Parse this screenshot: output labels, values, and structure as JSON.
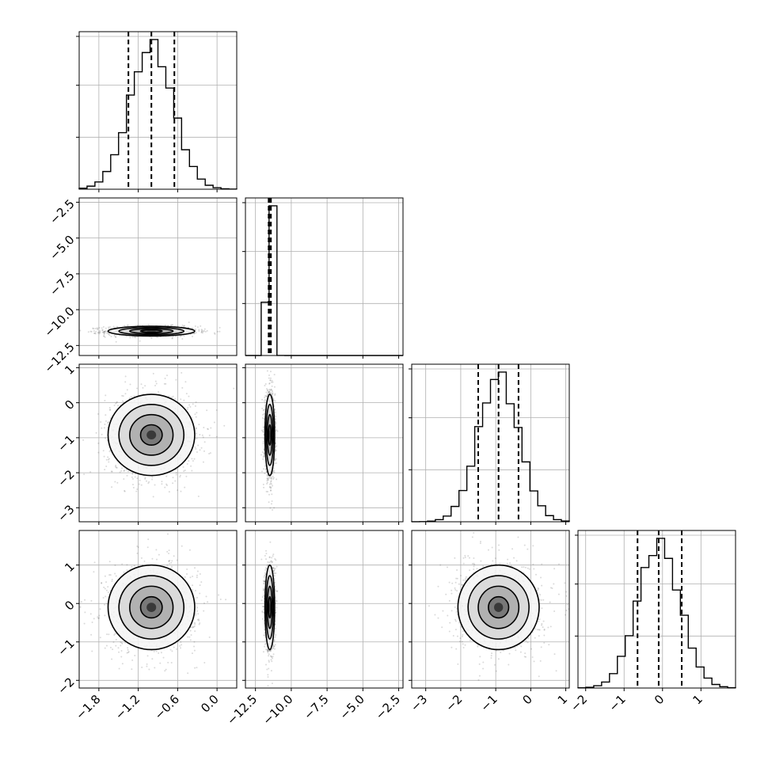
{
  "chart_data": {
    "type": "corner",
    "title": "",
    "grid": true,
    "quantile_line_style": "dashed",
    "parameters": [
      {
        "name": "p0",
        "label": "",
        "range": [
          -2.1,
          0.3
        ],
        "ticks": [
          -1.8,
          -1.2,
          -0.6,
          0.0
        ],
        "tick_labels": [
          "−1.8",
          "−1.2",
          "−0.6",
          "0.0"
        ],
        "mean": -1.0,
        "sd": 0.33,
        "quantiles": [
          -1.35,
          -1.0,
          -0.65
        ]
      },
      {
        "name": "p1",
        "label": "",
        "range": [
          -13.2,
          -2.2
        ],
        "ticks": [
          -12.5,
          -10.0,
          -7.5,
          -5.0,
          -2.5
        ],
        "tick_labels": [
          "−12.5",
          "−10.0",
          "−7.5",
          "−5.0",
          "−2.5"
        ],
        "mean": -11.5,
        "sd": 0.17,
        "quantiles": [
          -11.58,
          -11.5,
          -11.42
        ]
      },
      {
        "name": "p2",
        "label": "",
        "range": [
          -3.4,
          1.1
        ],
        "ticks": [
          -3,
          -2,
          -1,
          0,
          1
        ],
        "tick_labels": [
          "−3",
          "−2",
          "−1",
          "0",
          "1"
        ],
        "mean": -0.92,
        "sd": 0.58,
        "quantiles": [
          -1.5,
          -0.92,
          -0.35
        ]
      },
      {
        "name": "p3",
        "label": "",
        "range": [
          -2.2,
          1.9
        ],
        "ticks": [
          -2,
          -1,
          0,
          1
        ],
        "tick_labels": [
          "−2",
          "−1",
          "0",
          "1"
        ],
        "mean": -0.1,
        "sd": 0.55,
        "quantiles": [
          -0.65,
          -0.1,
          0.5
        ]
      }
    ]
  },
  "style": {
    "line_color": "#000000",
    "grid_color": "#b0b0b0",
    "scatter_color": "#555555",
    "fill_colors": [
      "#f4f4f4",
      "#d6d6d6",
      "#a9a9a9",
      "#6f6f6f",
      "#2e2e2e"
    ]
  }
}
